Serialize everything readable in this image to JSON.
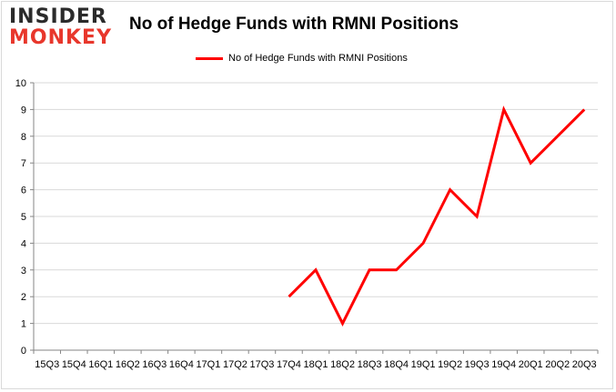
{
  "logo": {
    "line1": "INSIDER",
    "line2": "MONKEY",
    "colors": {
      "dark": "#2b2b2b",
      "accent": "#e8372c"
    }
  },
  "chart_data": {
    "type": "line",
    "title": "No of Hedge Funds with RMNI Positions",
    "xlabel": "",
    "ylabel": "",
    "categories": [
      "15Q3",
      "15Q4",
      "16Q1",
      "16Q2",
      "16Q3",
      "16Q4",
      "17Q1",
      "17Q2",
      "17Q3",
      "17Q4",
      "18Q1",
      "18Q2",
      "18Q3",
      "18Q4",
      "19Q1",
      "19Q2",
      "19Q3",
      "19Q4",
      "20Q1",
      "20Q2",
      "20Q3"
    ],
    "series": [
      {
        "name": "No of Hedge Funds with RMNI Positions",
        "color": "#ff0000",
        "values": [
          null,
          null,
          null,
          null,
          null,
          null,
          null,
          null,
          null,
          2,
          3,
          1,
          3,
          3,
          4,
          6,
          5,
          9,
          7,
          8,
          9
        ]
      }
    ],
    "ylim": [
      0,
      10
    ],
    "yticks": [
      0,
      1,
      2,
      3,
      4,
      5,
      6,
      7,
      8,
      9,
      10
    ],
    "grid": true,
    "legend_position": "top-center"
  }
}
